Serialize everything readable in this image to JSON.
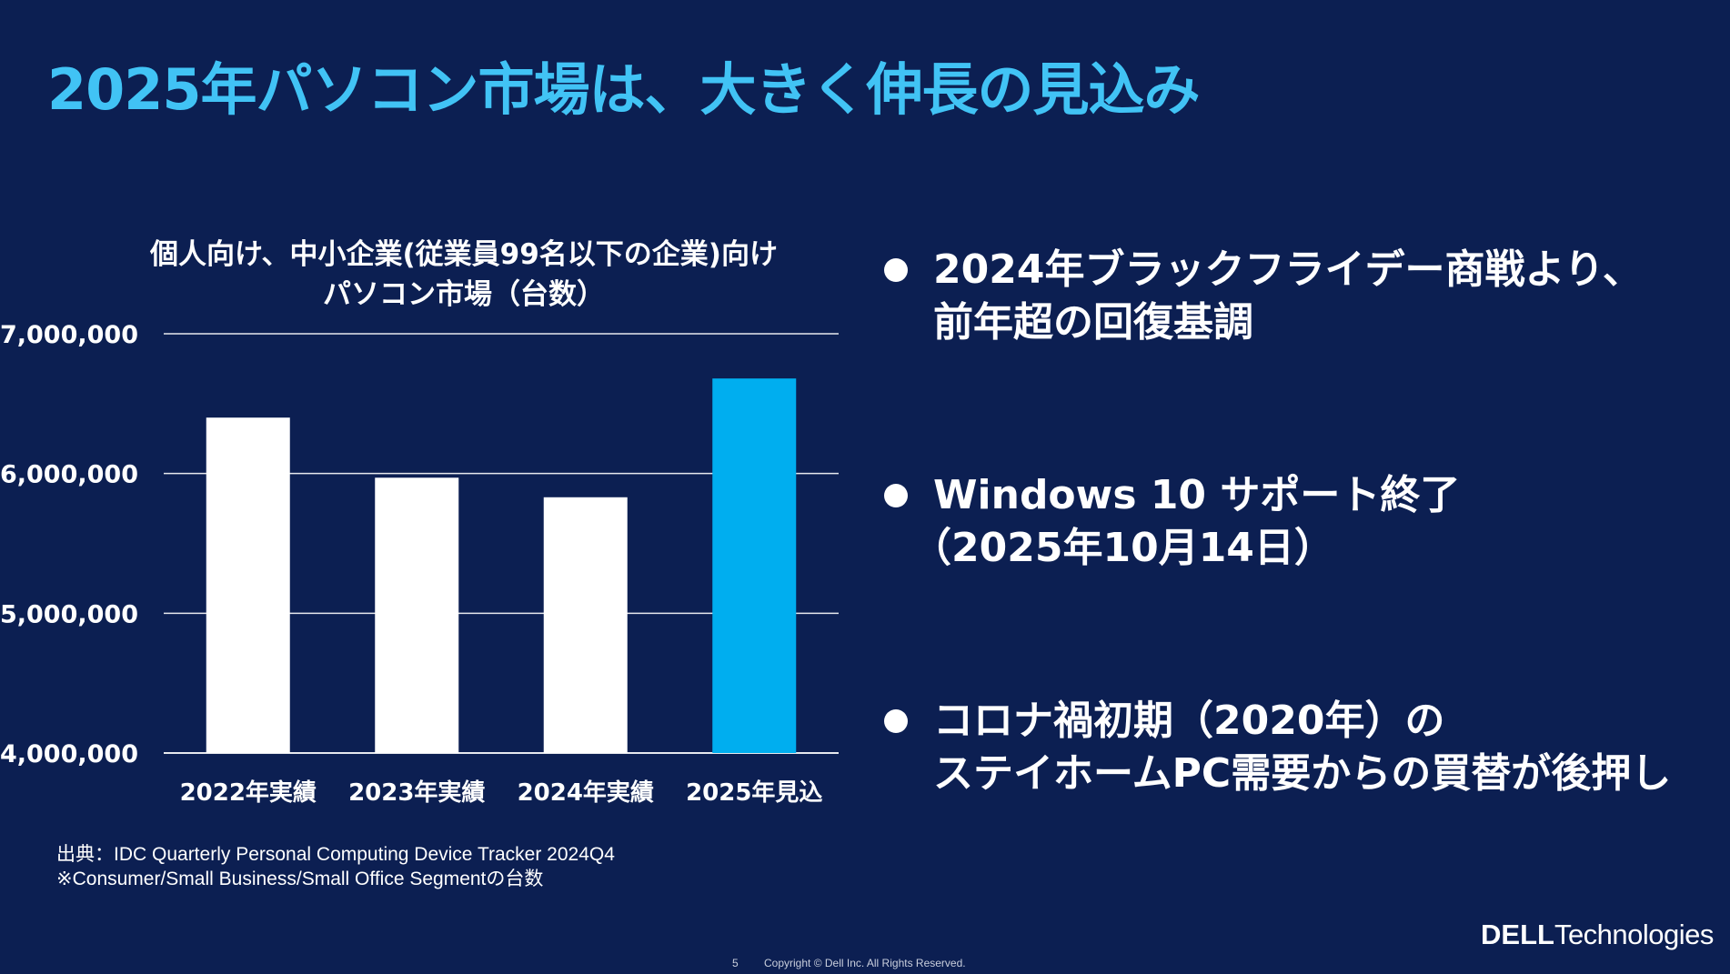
{
  "title": "2025年パソコン市場は、大きく伸長の見込み",
  "chart_data": {
    "type": "bar",
    "title_lines": [
      "個人向け、中小企業(従業員99名以下の企業)向け",
      "パソコン市場（台数）"
    ],
    "categories": [
      "2022年実績",
      "2023年実績",
      "2024年実績",
      "2025年見込"
    ],
    "values": [
      6400000,
      5970000,
      5830000,
      6680000
    ],
    "ylim": [
      4000000,
      7000000
    ],
    "yticks": [
      4000000,
      5000000,
      6000000,
      7000000
    ],
    "ytick_labels": [
      "4,000,000",
      "5,000,000",
      "6,000,000",
      "7,000,000"
    ],
    "grid": true,
    "colors": [
      "#ffffff",
      "#ffffff",
      "#ffffff",
      "#00aeef"
    ]
  },
  "bullets": [
    {
      "lines": [
        "2024年ブラックフライデー商戦より、",
        "前年超の回復基調"
      ]
    },
    {
      "lines": [
        "Windows 10 サポート終了",
        "（2025年10月14日）"
      ]
    },
    {
      "lines": [
        "コロナ禍初期（2020年）の",
        "ステイホームPC需要からの買替が後押し"
      ]
    }
  ],
  "source": {
    "line1": "出典：IDC Quarterly Personal Computing Device Tracker 2024Q4",
    "line2": "※Consumer/Small Business/Small Office Segmentの台数"
  },
  "footer": {
    "page": "5",
    "copyright": "Copyright © Dell Inc. All Rights Reserved."
  },
  "logo": {
    "dell": "DELL",
    "tech": "Technologies"
  },
  "colors": {
    "background": "#0c1f52",
    "title": "#41c3f5",
    "highlight_bar": "#00aeef"
  }
}
